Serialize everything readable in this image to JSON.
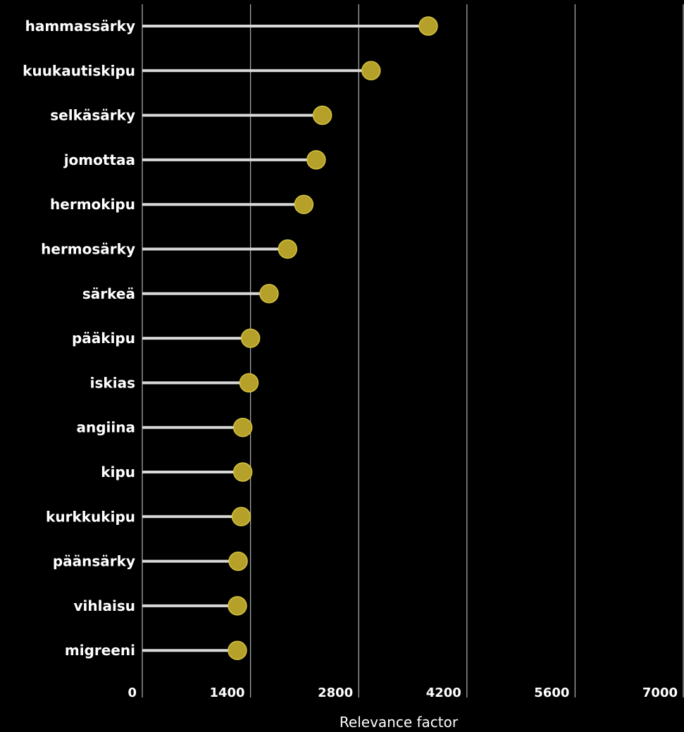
{
  "chart_data": {
    "type": "lollipop",
    "xlabel": "Relevance factor",
    "xlim": [
      0,
      7000
    ],
    "xticks": [
      0,
      1400,
      2800,
      4200,
      5600,
      7000
    ],
    "xtick_labels": [
      "0",
      "1400",
      "2800",
      "4200",
      "5600",
      "7000"
    ],
    "grid": "vertical",
    "categories": [
      "hammassärky",
      "kuukautiskipu",
      "selkäsärky",
      "jomottaa",
      "hermokipu",
      "hermosärky",
      "särkeä",
      "pääkipu",
      "iskias",
      "angiina",
      "kipu",
      "kurkkukipu",
      "päänsärky",
      "vihlaisu",
      "migreeni"
    ],
    "values": [
      3700,
      2960,
      2330,
      2250,
      2090,
      1880,
      1640,
      1400,
      1380,
      1300,
      1300,
      1280,
      1240,
      1230,
      1230
    ],
    "colors": {
      "background": "#000000",
      "marker": "#b5a12a",
      "marker_stroke": "#d6c23e",
      "stem": "#d9d9d9",
      "grid": "#a6a6a6",
      "text": "#ffffff"
    }
  }
}
